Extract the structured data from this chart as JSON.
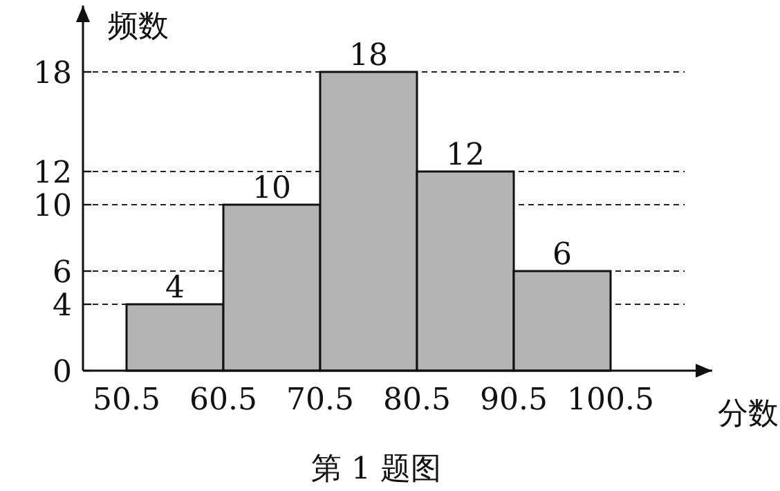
{
  "chart_data": {
    "type": "histogram",
    "bins": [
      50.5,
      60.5,
      70.5,
      80.5,
      90.5,
      100.5
    ],
    "values": [
      4,
      10,
      18,
      12,
      6
    ],
    "color": "#b4b4b4",
    "xlim": [
      46,
      111
    ],
    "ylim": [
      0,
      22
    ],
    "xticks": [
      50.5,
      60.5,
      70.5,
      80.5,
      90.5,
      100.5
    ],
    "yticks": [
      0,
      4,
      6,
      10,
      12,
      18
    ],
    "xlabel": "分数",
    "ylabel": "频数",
    "data_labels": true,
    "grid": "y",
    "annotations": [
      "第 1 题图"
    ]
  }
}
